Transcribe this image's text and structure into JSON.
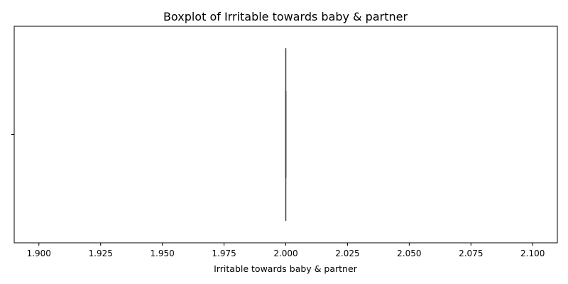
{
  "chart_data": {
    "type": "box",
    "title": "Boxplot of Irritable towards baby & partner",
    "xlabel": "Irritable towards baby & partner",
    "ylabel": "",
    "orientation": "horizontal",
    "xlim": [
      1.89,
      2.11
    ],
    "x_ticks": [
      1.9,
      1.925,
      1.95,
      1.975,
      2.0,
      2.025,
      2.05,
      2.075,
      2.1
    ],
    "x_tick_labels": [
      "1.900",
      "1.925",
      "1.950",
      "1.975",
      "2.000",
      "2.025",
      "2.050",
      "2.075",
      "2.100"
    ],
    "y_tick_labels": [
      ""
    ],
    "box": {
      "min": 2.0,
      "q1": 2.0,
      "median": 2.0,
      "q3": 2.0,
      "max": 2.0
    },
    "box_color": "#1f77b4",
    "line_color": "#3f3f3f",
    "grid": false,
    "legend": "none"
  }
}
